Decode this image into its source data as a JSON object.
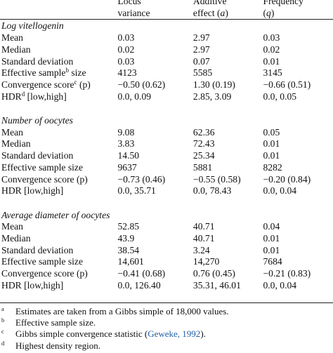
{
  "header": {
    "col1": [
      "Locus",
      "variance"
    ],
    "col2_line1": "Additive",
    "col2_line2_prefix": "effect (",
    "col2_line2_symbol": "a",
    "col2_line2_suffix": ")",
    "col3_line1": "Frequency",
    "col3_line2_prefix": "(",
    "col3_line2_symbol": "q",
    "col3_line2_suffix": ")"
  },
  "sections": [
    {
      "title": "Log vitellogenin",
      "rows": [
        {
          "label": "Mean",
          "locus": "0.03",
          "additive": "2.97",
          "freq": "0.03"
        },
        {
          "label": "Median",
          "locus": "0.02",
          "additive": "2.97",
          "freq": "0.02"
        },
        {
          "label": "Standard deviation",
          "locus": "0.03",
          "additive": "0.07",
          "freq": "0.01"
        },
        {
          "label": "Effective sample",
          "sup": "b",
          "label_suffix": " size",
          "locus": "4123",
          "additive": "5585",
          "freq": "3145"
        },
        {
          "label": "Convergence score",
          "sup": "c",
          "label_suffix": " (p)",
          "locus": "−0.50 (0.62)",
          "additive": "1.30 (0.19)",
          "freq": "−0.66 (0.51)"
        },
        {
          "label": "HDR",
          "sup": "d",
          "label_suffix": " [low,high]",
          "locus": "0.0, 0.09",
          "additive": "2.85, 3.09",
          "freq": "0.0, 0.05"
        }
      ]
    },
    {
      "title": "Number of oocytes",
      "rows": [
        {
          "label": "Mean",
          "locus": "9.08",
          "additive": "62.36",
          "freq": "0.05"
        },
        {
          "label": "Median",
          "locus": "3.83",
          "additive": "72.43",
          "freq": "0.01"
        },
        {
          "label": "Standard deviation",
          "locus": "14.50",
          "additive": "25.34",
          "freq": "0.01"
        },
        {
          "label": "Effective sample size",
          "locus": "9637",
          "additive": "5881",
          "freq": "8282"
        },
        {
          "label": "Convergence score (p)",
          "locus": "−0.73 (0.46)",
          "additive": "−0.55 (0.58)",
          "freq": "−0.20 (0.84)"
        },
        {
          "label": "HDR [low,high]",
          "locus": "0.0, 35.71",
          "additive": "0.0, 78.43",
          "freq": "0.0, 0.04"
        }
      ]
    },
    {
      "title": "Average diameter of oocytes",
      "rows": [
        {
          "label": "Mean",
          "locus": "52.85",
          "additive": "40.71",
          "freq": "0.04"
        },
        {
          "label": "Median",
          "locus": "43.9",
          "additive": "40.71",
          "freq": "0.01"
        },
        {
          "label": "Standard deviation",
          "locus": "38.54",
          "additive": "3.24",
          "freq": "0.01"
        },
        {
          "label": "Effective sample size",
          "locus": "14,601",
          "additive": "14,270",
          "freq": "7684"
        },
        {
          "label": "Convergence score (p)",
          "locus": "−0.41 (0.68)",
          "additive": "0.76 (0.45)",
          "freq": "−0.21 (0.83)"
        },
        {
          "label": "HDR [low,high]",
          "locus": "0.0, 126.40",
          "additive": "35.31, 46.01",
          "freq": "0.0, 0.04"
        }
      ]
    }
  ],
  "footnotes": [
    {
      "mark": "a",
      "text": "Estimates are taken from a Gibbs simple of 18,000 values."
    },
    {
      "mark": "b",
      "text": "Effective sample size."
    },
    {
      "mark": "c",
      "text_prefix": "Gibbs simple convergence statistic (",
      "cite": "Geweke, 1992",
      "text_suffix": ")."
    },
    {
      "mark": "d",
      "text": "Highest density region."
    }
  ]
}
